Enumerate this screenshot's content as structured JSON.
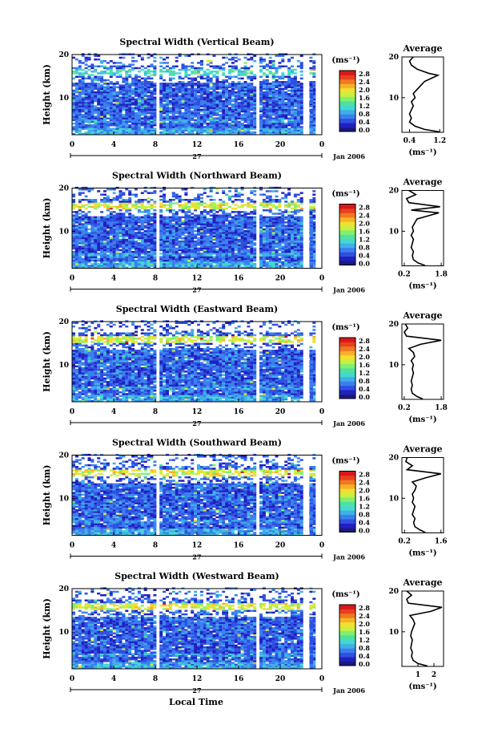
{
  "figure": {
    "date_label": "Jan 2006",
    "day_label": "27",
    "x_axis_title": "Local Time",
    "height_axis_title": "Height (km)",
    "unit_label": "(ms⁻¹)",
    "average_title": "Average"
  },
  "colorbar": {
    "ticks": [
      "0.0",
      "0.4",
      "0.8",
      "1.2",
      "1.6",
      "2.0",
      "2.4",
      "2.8"
    ],
    "colors": [
      "#1a1a80",
      "#2020c0",
      "#2f4fe0",
      "#3a7ff0",
      "#3fafe8",
      "#44d8d0",
      "#50e0a0",
      "#80f070",
      "#c8f040",
      "#f0e030",
      "#f8b028",
      "#f07820",
      "#e84020",
      "#d81818"
    ]
  },
  "chart_data": [
    {
      "type": "heatmap",
      "title": "Spectral Width (Vertical Beam)",
      "xlabel": "",
      "ylabel": "Height (km)",
      "x_ticks": [
        "0",
        "4",
        "8",
        "12",
        "16",
        "20",
        "0"
      ],
      "xlim": [
        0,
        24
      ],
      "y_ticks": [
        "10",
        "20"
      ],
      "ylim": [
        1.5,
        20
      ],
      "avg_x_ticks": [
        "0.4",
        "1.2"
      ],
      "avg_profile": {
        "xlim": [
          0.2,
          1.3
        ],
        "points": [
          [
            1.2,
            1.6
          ],
          [
            0.8,
            2.2
          ],
          [
            0.55,
            3
          ],
          [
            0.4,
            4
          ],
          [
            0.45,
            5
          ],
          [
            0.4,
            6
          ],
          [
            0.45,
            7
          ],
          [
            0.5,
            8
          ],
          [
            0.45,
            9
          ],
          [
            0.55,
            10
          ],
          [
            0.5,
            11
          ],
          [
            0.6,
            12
          ],
          [
            0.7,
            13
          ],
          [
            0.8,
            14
          ],
          [
            1.15,
            15.5
          ],
          [
            0.9,
            16
          ],
          [
            0.6,
            17
          ],
          [
            0.45,
            18
          ],
          [
            0.4,
            19
          ],
          [
            0.5,
            20
          ]
        ]
      }
    },
    {
      "type": "heatmap",
      "title": "Spectral Width (Northward Beam)",
      "xlabel": "",
      "ylabel": "Height (km)",
      "x_ticks": [
        "0",
        "4",
        "8",
        "12",
        "16",
        "20",
        "0"
      ],
      "xlim": [
        0,
        24
      ],
      "y_ticks": [
        "10",
        "20"
      ],
      "ylim": [
        1.5,
        20
      ],
      "avg_x_ticks": [
        "0.2",
        "1.8"
      ],
      "avg_profile": {
        "xlim": [
          0.1,
          1.9
        ],
        "points": [
          [
            1.1,
            1.6
          ],
          [
            0.8,
            2.2
          ],
          [
            0.6,
            3
          ],
          [
            0.55,
            4
          ],
          [
            0.6,
            5
          ],
          [
            0.5,
            6
          ],
          [
            0.55,
            7
          ],
          [
            0.6,
            8
          ],
          [
            0.5,
            9
          ],
          [
            0.6,
            10
          ],
          [
            0.55,
            11
          ],
          [
            0.65,
            12
          ],
          [
            0.75,
            13
          ],
          [
            1.7,
            14.5
          ],
          [
            0.5,
            15.2
          ],
          [
            1.75,
            16
          ],
          [
            0.4,
            17
          ],
          [
            0.3,
            18
          ],
          [
            0.7,
            19
          ],
          [
            0.4,
            20
          ]
        ]
      }
    },
    {
      "type": "heatmap",
      "title": "Spectral Width (Eastward Beam)",
      "xlabel": "",
      "ylabel": "Height (km)",
      "x_ticks": [
        "0",
        "4",
        "8",
        "12",
        "16",
        "20",
        "0"
      ],
      "xlim": [
        0,
        24
      ],
      "y_ticks": [
        "10",
        "20"
      ],
      "ylim": [
        1.5,
        20
      ],
      "avg_x_ticks": [
        "0.2",
        "1.8"
      ],
      "avg_profile": {
        "xlim": [
          0.1,
          1.9
        ],
        "points": [
          [
            1.0,
            1.6
          ],
          [
            0.75,
            2.2
          ],
          [
            0.55,
            3
          ],
          [
            0.5,
            4
          ],
          [
            0.55,
            5
          ],
          [
            0.5,
            6
          ],
          [
            0.55,
            7
          ],
          [
            0.6,
            8
          ],
          [
            0.55,
            9
          ],
          [
            0.6,
            10
          ],
          [
            0.5,
            11
          ],
          [
            0.65,
            12
          ],
          [
            0.6,
            13
          ],
          [
            0.4,
            14
          ],
          [
            0.9,
            15
          ],
          [
            1.8,
            16
          ],
          [
            0.3,
            17
          ],
          [
            0.2,
            18
          ],
          [
            0.35,
            19
          ],
          [
            0.25,
            20
          ]
        ]
      }
    },
    {
      "type": "heatmap",
      "title": "Spectral Width (Southward Beam)",
      "xlabel": "",
      "ylabel": "Height (km)",
      "x_ticks": [
        "0",
        "4",
        "8",
        "12",
        "16",
        "20",
        "0"
      ],
      "xlim": [
        0,
        24
      ],
      "y_ticks": [
        "10",
        "20"
      ],
      "ylim": [
        1.5,
        20
      ],
      "avg_x_ticks": [
        "0.2",
        "1.6"
      ],
      "avg_profile": {
        "xlim": [
          0.1,
          1.7
        ],
        "points": [
          [
            1.0,
            1.6
          ],
          [
            0.8,
            2.2
          ],
          [
            0.6,
            3
          ],
          [
            0.55,
            4
          ],
          [
            0.6,
            5
          ],
          [
            0.5,
            6
          ],
          [
            0.55,
            7
          ],
          [
            0.6,
            8
          ],
          [
            0.5,
            9
          ],
          [
            0.55,
            10
          ],
          [
            0.5,
            11
          ],
          [
            0.6,
            12
          ],
          [
            0.65,
            13
          ],
          [
            0.5,
            14
          ],
          [
            1.0,
            15
          ],
          [
            1.6,
            16
          ],
          [
            0.3,
            17
          ],
          [
            0.5,
            18
          ],
          [
            0.25,
            19
          ],
          [
            0.3,
            20
          ]
        ]
      }
    },
    {
      "type": "heatmap",
      "title": "Spectral Width (Westward Beam)",
      "xlabel": "",
      "ylabel": "Height (km)",
      "x_ticks": [
        "0",
        "4",
        "8",
        "12",
        "16",
        "20",
        "0"
      ],
      "xlim": [
        0,
        24
      ],
      "y_ticks": [
        "10",
        "20"
      ],
      "ylim": [
        1.5,
        20
      ],
      "avg_x_ticks": [
        "1",
        "2"
      ],
      "avg_profile": {
        "xlim": [
          0.0,
          2.6
        ],
        "points": [
          [
            1.6,
            1.6
          ],
          [
            1.0,
            2.2
          ],
          [
            0.7,
            3
          ],
          [
            0.6,
            4
          ],
          [
            0.65,
            5
          ],
          [
            0.55,
            6
          ],
          [
            0.6,
            7
          ],
          [
            0.65,
            8
          ],
          [
            0.55,
            9
          ],
          [
            0.6,
            10
          ],
          [
            0.7,
            11
          ],
          [
            0.8,
            12
          ],
          [
            0.7,
            13
          ],
          [
            0.5,
            14
          ],
          [
            1.8,
            15
          ],
          [
            2.5,
            16
          ],
          [
            0.4,
            17
          ],
          [
            0.3,
            18
          ],
          [
            0.6,
            19
          ],
          [
            0.3,
            20
          ]
        ]
      }
    }
  ]
}
